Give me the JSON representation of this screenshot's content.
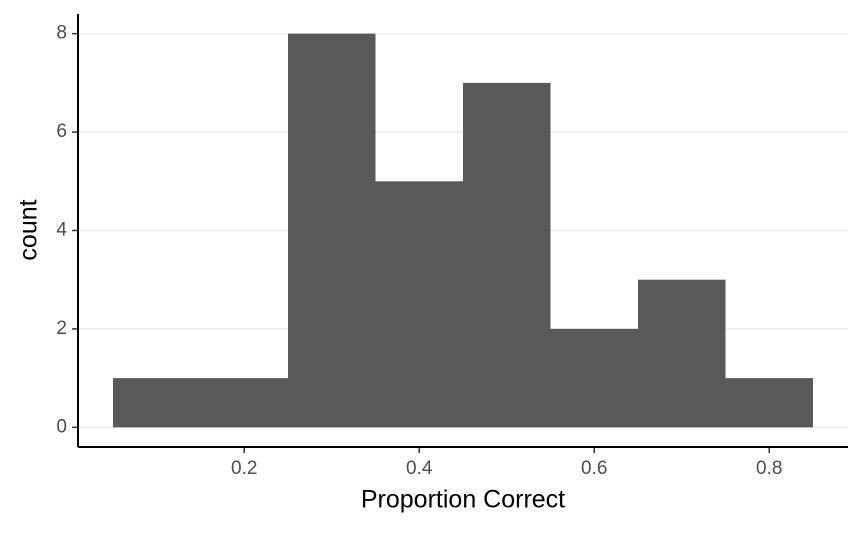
{
  "chart_data": {
    "type": "histogram",
    "x_label": "Proportion Correct",
    "y_label": "count",
    "bins": [
      0.05,
      0.15,
      0.25,
      0.35,
      0.45,
      0.55,
      0.65,
      0.75,
      0.85
    ],
    "values": [
      1,
      1,
      8,
      5,
      7,
      2,
      3,
      1
    ],
    "color": "#595959",
    "xlim": [
      0.01,
      0.89
    ],
    "ylim": [
      -0.4,
      8.4
    ],
    "xticks": [
      0.2,
      0.4,
      0.6,
      0.8
    ],
    "yticks": [
      0,
      2,
      4,
      6,
      8
    ],
    "grid": true
  }
}
